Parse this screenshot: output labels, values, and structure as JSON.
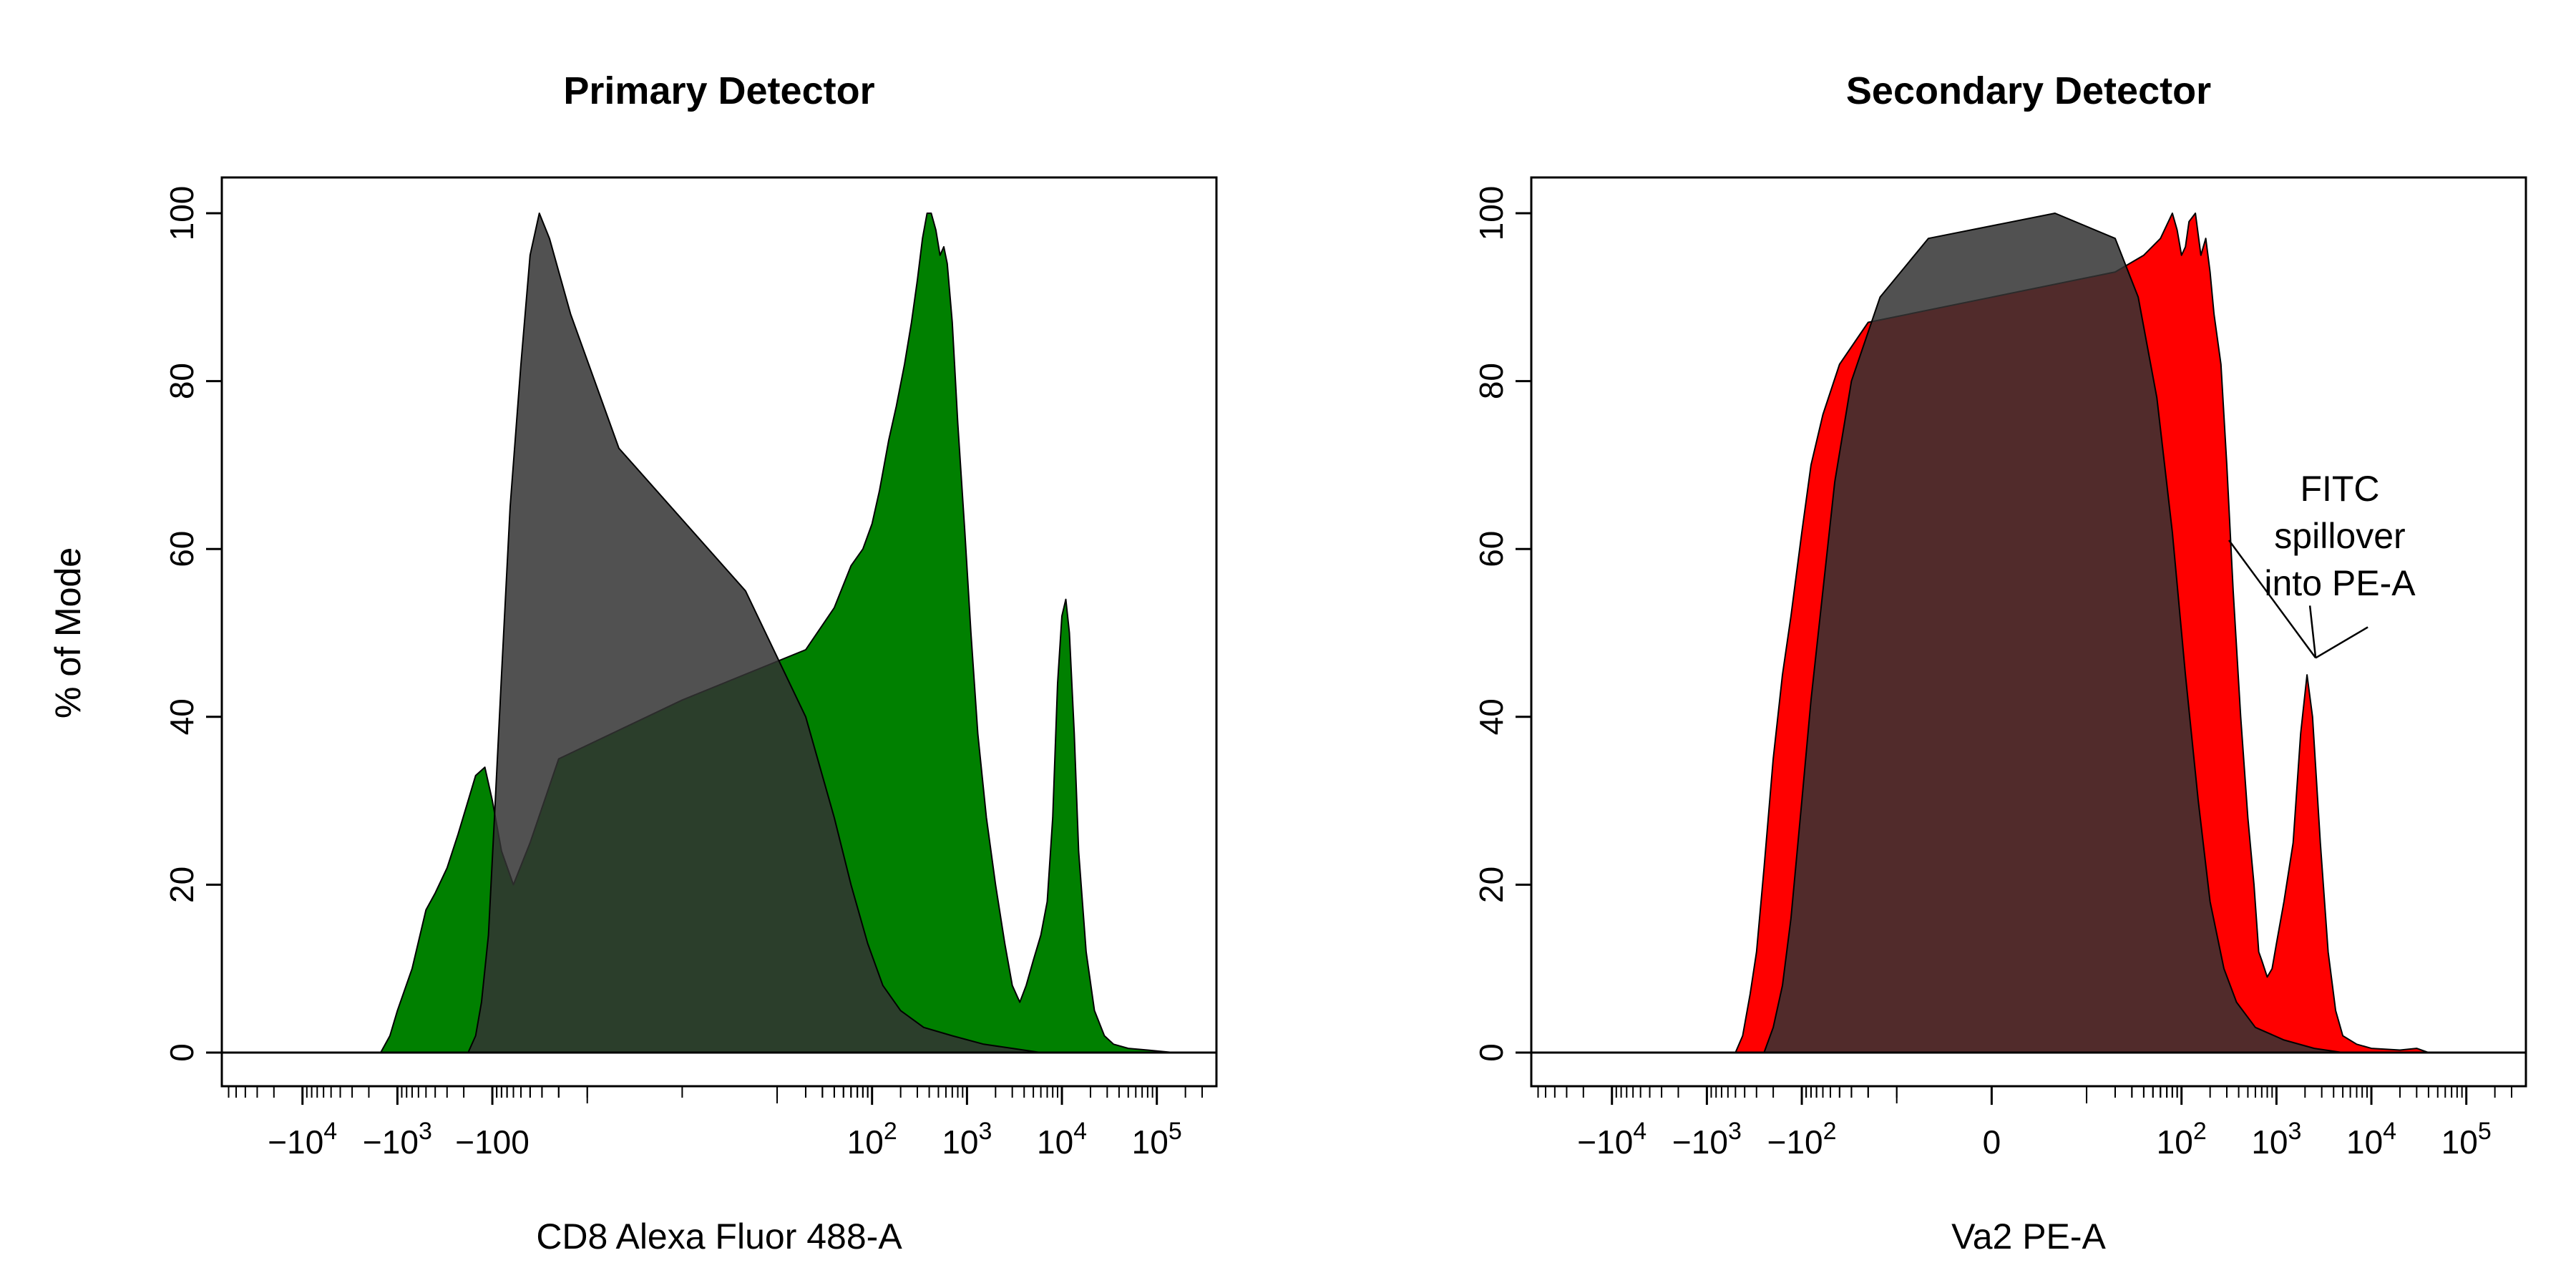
{
  "chart_data": [
    {
      "type": "area",
      "title": "Primary Detector",
      "xlabel": "CD8 Alexa Fluor 488-A",
      "ylabel": "% of Mode",
      "xscale": "biexponential (logicle)",
      "ylim": [
        0,
        100
      ],
      "y_ticks": [
        "0",
        "20",
        "40",
        "60",
        "80",
        "100"
      ],
      "x_ticks": [
        {
          "value": -10000,
          "label": "−10",
          "exp": "4"
        },
        {
          "value": -1000,
          "label": "−10",
          "exp": "3"
        },
        {
          "value": -100,
          "label": "−100",
          "exp": ""
        },
        {
          "value": 100,
          "label": "10",
          "exp": "2"
        },
        {
          "value": 1000,
          "label": "10",
          "exp": "3"
        },
        {
          "value": 10000,
          "label": "10",
          "exp": "4"
        },
        {
          "value": 100000,
          "label": "10",
          "exp": "5"
        }
      ],
      "grid": false,
      "series": [
        {
          "role": "sample",
          "color": "#008000",
          "points": [
            [
              -1500,
              0
            ],
            [
              -1200,
              2
            ],
            [
              -1000,
              5
            ],
            [
              -700,
              10
            ],
            [
              -500,
              17
            ],
            [
              -400,
              19
            ],
            [
              -300,
              22
            ],
            [
              -230,
              26
            ],
            [
              -180,
              30
            ],
            [
              -150,
              33
            ],
            [
              -120,
              34
            ],
            [
              -100,
              30
            ],
            [
              -80,
              24
            ],
            [
              -60,
              20
            ],
            [
              -40,
              25
            ],
            [
              -20,
              35
            ],
            [
              0,
              42
            ],
            [
              20,
              48
            ],
            [
              40,
              53
            ],
            [
              60,
              58
            ],
            [
              80,
              60
            ],
            [
              100,
              63
            ],
            [
              120,
              67
            ],
            [
              150,
              73
            ],
            [
              180,
              77
            ],
            [
              220,
              82
            ],
            [
              260,
              87
            ],
            [
              300,
              92
            ],
            [
              340,
              97
            ],
            [
              380,
              100
            ],
            [
              420,
              100
            ],
            [
              470,
              98
            ],
            [
              520,
              95
            ],
            [
              570,
              96
            ],
            [
              620,
              94
            ],
            [
              700,
              87
            ],
            [
              800,
              75
            ],
            [
              950,
              62
            ],
            [
              1100,
              50
            ],
            [
              1300,
              38
            ],
            [
              1600,
              28
            ],
            [
              2000,
              20
            ],
            [
              2500,
              13
            ],
            [
              3000,
              8
            ],
            [
              3600,
              6
            ],
            [
              4200,
              8
            ],
            [
              5000,
              11
            ],
            [
              6000,
              14
            ],
            [
              7000,
              18
            ],
            [
              8000,
              28
            ],
            [
              9000,
              44
            ],
            [
              10000,
              52
            ],
            [
              11000,
              54
            ],
            [
              12000,
              50
            ],
            [
              13500,
              38
            ],
            [
              15000,
              24
            ],
            [
              18000,
              12
            ],
            [
              22000,
              5
            ],
            [
              28000,
              2
            ],
            [
              35000,
              1
            ],
            [
              50000,
              0.5
            ],
            [
              80000,
              0.3
            ],
            [
              150000,
              0
            ]
          ]
        },
        {
          "role": "control",
          "color": "#333333",
          "points": [
            [
              -180,
              0
            ],
            [
              -150,
              2
            ],
            [
              -130,
              6
            ],
            [
              -110,
              14
            ],
            [
              -95,
              28
            ],
            [
              -80,
              45
            ],
            [
              -65,
              65
            ],
            [
              -50,
              82
            ],
            [
              -40,
              95
            ],
            [
              -32,
              100
            ],
            [
              -25,
              97
            ],
            [
              -15,
              88
            ],
            [
              -5,
              72
            ],
            [
              5,
              55
            ],
            [
              20,
              40
            ],
            [
              40,
              28
            ],
            [
              60,
              20
            ],
            [
              90,
              13
            ],
            [
              130,
              8
            ],
            [
              200,
              5
            ],
            [
              350,
              3
            ],
            [
              700,
              2
            ],
            [
              1500,
              1
            ],
            [
              3000,
              0.5
            ],
            [
              6000,
              0
            ]
          ]
        }
      ]
    },
    {
      "type": "area",
      "title": "Secondary Detector",
      "xlabel": "Va2 PE-A",
      "ylabel": "% of Mode",
      "xscale": "biexponential (logicle)",
      "ylim": [
        0,
        100
      ],
      "y_ticks": [
        "0",
        "20",
        "40",
        "60",
        "80",
        "100"
      ],
      "x_ticks": [
        {
          "value": -10000,
          "label": "−10",
          "exp": "4"
        },
        {
          "value": -1000,
          "label": "−10",
          "exp": "3"
        },
        {
          "value": -100,
          "label": "−10",
          "exp": "2"
        },
        {
          "value": 0,
          "label": "0",
          "exp": ""
        },
        {
          "value": 100,
          "label": "10",
          "exp": "2"
        },
        {
          "value": 1000,
          "label": "10",
          "exp": "3"
        },
        {
          "value": 10000,
          "label": "10",
          "exp": "4"
        },
        {
          "value": 100000,
          "label": "10",
          "exp": "5"
        }
      ],
      "grid": false,
      "annotation": {
        "lines": [
          "FITC",
          "spillover",
          "into PE-A"
        ],
        "points_to": [
          2100,
          46
        ]
      },
      "series": [
        {
          "role": "sample",
          "color": "#FF0000",
          "points": [
            [
              -500,
              0
            ],
            [
              -420,
              2
            ],
            [
              -350,
              7
            ],
            [
              -300,
              12
            ],
            [
              -250,
              22
            ],
            [
              -200,
              35
            ],
            [
              -160,
              45
            ],
            [
              -130,
              52
            ],
            [
              -100,
              62
            ],
            [
              -80,
              70
            ],
            [
              -60,
              76
            ],
            [
              -40,
              82
            ],
            [
              -20,
              87
            ],
            [
              0,
              90
            ],
            [
              20,
              93
            ],
            [
              40,
              95
            ],
            [
              60,
              97
            ],
            [
              80,
              100
            ],
            [
              90,
              98
            ],
            [
              100,
              95
            ],
            [
              110,
              96
            ],
            [
              120,
              99
            ],
            [
              140,
              100
            ],
            [
              160,
              95
            ],
            [
              180,
              97
            ],
            [
              200,
              93
            ],
            [
              220,
              88
            ],
            [
              260,
              82
            ],
            [
              300,
              70
            ],
            [
              350,
              55
            ],
            [
              420,
              40
            ],
            [
              500,
              28
            ],
            [
              580,
              20
            ],
            [
              650,
              12
            ],
            [
              700,
              11
            ],
            [
              800,
              9
            ],
            [
              900,
              10
            ],
            [
              1000,
              13
            ],
            [
              1200,
              18
            ],
            [
              1500,
              25
            ],
            [
              1800,
              38
            ],
            [
              2100,
              45
            ],
            [
              2400,
              40
            ],
            [
              2900,
              25
            ],
            [
              3500,
              12
            ],
            [
              4200,
              5
            ],
            [
              5000,
              2
            ],
            [
              7000,
              1
            ],
            [
              10000,
              0.5
            ],
            [
              20000,
              0.3
            ],
            [
              30000,
              0.5
            ],
            [
              40000,
              0
            ]
          ]
        },
        {
          "role": "control",
          "color": "#333333",
          "points": [
            [
              -250,
              0
            ],
            [
              -200,
              3
            ],
            [
              -160,
              8
            ],
            [
              -130,
              16
            ],
            [
              -100,
              30
            ],
            [
              -80,
              42
            ],
            [
              -60,
              55
            ],
            [
              -45,
              68
            ],
            [
              -30,
              80
            ],
            [
              -15,
              90
            ],
            [
              -5,
              97
            ],
            [
              5,
              100
            ],
            [
              20,
              97
            ],
            [
              35,
              90
            ],
            [
              55,
              78
            ],
            [
              80,
              62
            ],
            [
              110,
              45
            ],
            [
              150,
              30
            ],
            [
              200,
              18
            ],
            [
              280,
              10
            ],
            [
              380,
              6
            ],
            [
              600,
              3
            ],
            [
              1200,
              1.5
            ],
            [
              2500,
              0.5
            ],
            [
              5000,
              0
            ]
          ]
        }
      ]
    }
  ]
}
